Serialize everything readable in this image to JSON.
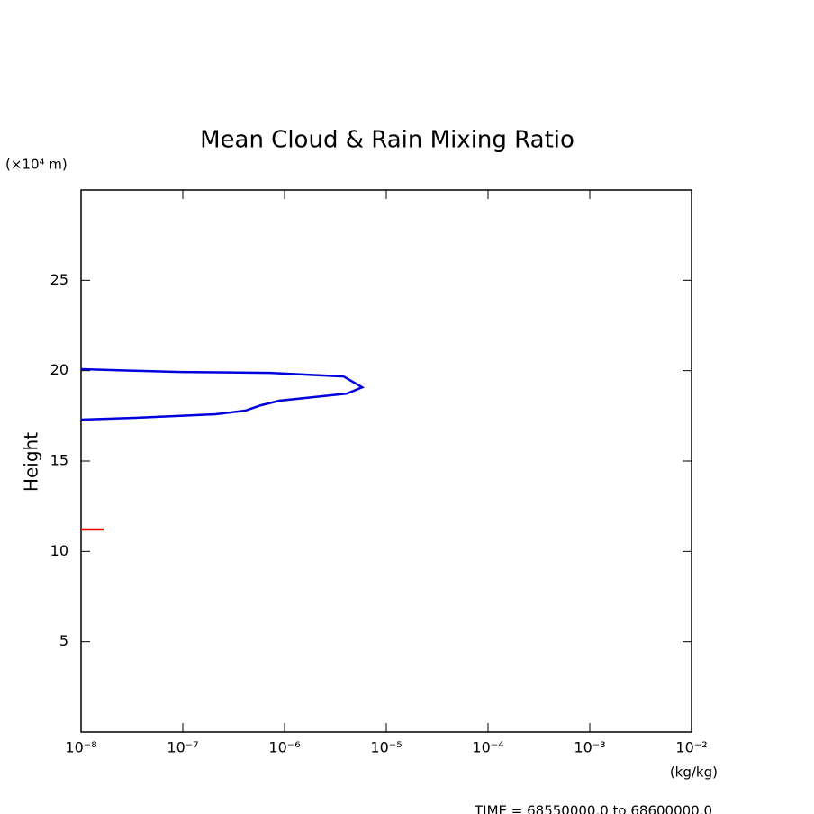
{
  "chart_data": {
    "type": "line",
    "title": "Mean Cloud & Rain Mixing Ratio",
    "y_label": "Height",
    "y_unit": "(×10⁴ m)",
    "x_unit": "(kg/kg)",
    "footer": "TIME = 68550000.0 to 68600000.0",
    "xscale": "log",
    "xlim": [
      1e-08,
      0.01
    ],
    "xticks": [
      {
        "value": 1e-08,
        "label": "10⁻⁸"
      },
      {
        "value": 1e-07,
        "label": "10⁻⁷"
      },
      {
        "value": 1e-06,
        "label": "10⁻⁶"
      },
      {
        "value": 1e-05,
        "label": "10⁻⁵"
      },
      {
        "value": 0.0001,
        "label": "10⁻⁴"
      },
      {
        "value": 0.001,
        "label": "10⁻³"
      },
      {
        "value": 0.01,
        "label": "10⁻²"
      }
    ],
    "ylim": [
      0,
      30
    ],
    "yticks": [
      5,
      10,
      15,
      20,
      25
    ],
    "series": [
      {
        "color": "#0000dd",
        "x": [
          1e-08,
          9.4e-08,
          7.2e-07,
          3.8e-06,
          5.8e-06,
          4.1e-06,
          8.9e-07,
          5.9e-07,
          4.1e-07,
          2.1e-07,
          3.4e-08,
          1e-08
        ],
        "values": [
          20.08,
          19.93,
          19.88,
          19.68,
          19.08,
          18.73,
          18.34,
          18.09,
          17.79,
          17.59,
          17.39,
          17.29
        ]
      },
      {
        "color": "#ee0000",
        "x": [
          1e-08,
          1.66e-08
        ],
        "values": [
          11.21,
          11.21
        ]
      }
    ]
  }
}
